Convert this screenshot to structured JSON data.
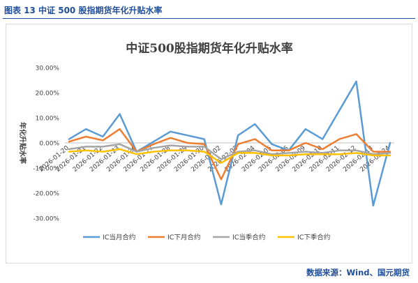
{
  "figure": {
    "caption": "图表 13  中证 500 股指期货年化升贴水率",
    "source": "数据来源：Wind、国元期货"
  },
  "chart_data": {
    "type": "line",
    "title": "中证500股指期货年化升贴水率",
    "xlabel": "",
    "ylabel": "年化升贴水率",
    "ylim": [
      -30,
      30
    ],
    "yticks": [
      30,
      20,
      10,
      0,
      -10,
      -20,
      -30
    ],
    "ytick_labels": [
      "30.00%",
      "20.00%",
      "10.00%",
      "0.00%",
      "-10.00%",
      "-20.00%",
      "-30.00%"
    ],
    "grid": false,
    "legend_position": "bottom",
    "categories": [
      "2026-01-20",
      "2026-01-21",
      "2026-01-22",
      "2026-01-23",
      "2026-01-26",
      "2026-01-27",
      "2026-01-28",
      "2026-01-29",
      "2026-01-30",
      "2026-02-02",
      "2026-02-03",
      "2026-02-04",
      "2026-02-05",
      "2026-02-06",
      "2026-02-09",
      "2026-02-10",
      "2026-02-11",
      "2026-02-12",
      "2026-02-13",
      "2026-02-24"
    ],
    "series": [
      {
        "name": "IC当月合约",
        "color": "#5b9bd5",
        "values": [
          1.5,
          5.5,
          2.5,
          11.5,
          -3.5,
          0.5,
          4.5,
          3.0,
          1.5,
          -24.5,
          3.0,
          7.5,
          -0.5,
          -3.0,
          5.5,
          1.5,
          13.0,
          24.5,
          -25.0,
          0.0
        ]
      },
      {
        "name": "IC下月合约",
        "color": "#ed7d31",
        "values": [
          0.5,
          2.5,
          1.0,
          5.5,
          -3.5,
          -0.5,
          2.0,
          0.0,
          -0.5,
          -14.5,
          -0.5,
          1.5,
          -3.0,
          -3.0,
          0.0,
          -2.5,
          1.5,
          3.5,
          -3.5,
          -3.5
        ]
      },
      {
        "name": "IC当季合约",
        "color": "#a5a5a5",
        "values": [
          -2.5,
          -1.5,
          -1.5,
          -0.5,
          -3.5,
          -2.0,
          -1.0,
          -1.5,
          -1.5,
          -6.5,
          -3.5,
          -3.0,
          -4.5,
          -4.0,
          -3.5,
          -4.0,
          -3.0,
          -3.0,
          -4.5,
          -4.0
        ]
      },
      {
        "name": "IC下季合约",
        "color": "#ffc000",
        "values": [
          -3.5,
          -3.0,
          -3.5,
          -2.5,
          -4.5,
          -3.5,
          -3.0,
          -3.0,
          -3.5,
          -8.0,
          -4.0,
          -4.0,
          -5.0,
          -5.0,
          -4.5,
          -4.5,
          -4.5,
          -4.0,
          -5.0,
          -5.0
        ]
      }
    ]
  }
}
